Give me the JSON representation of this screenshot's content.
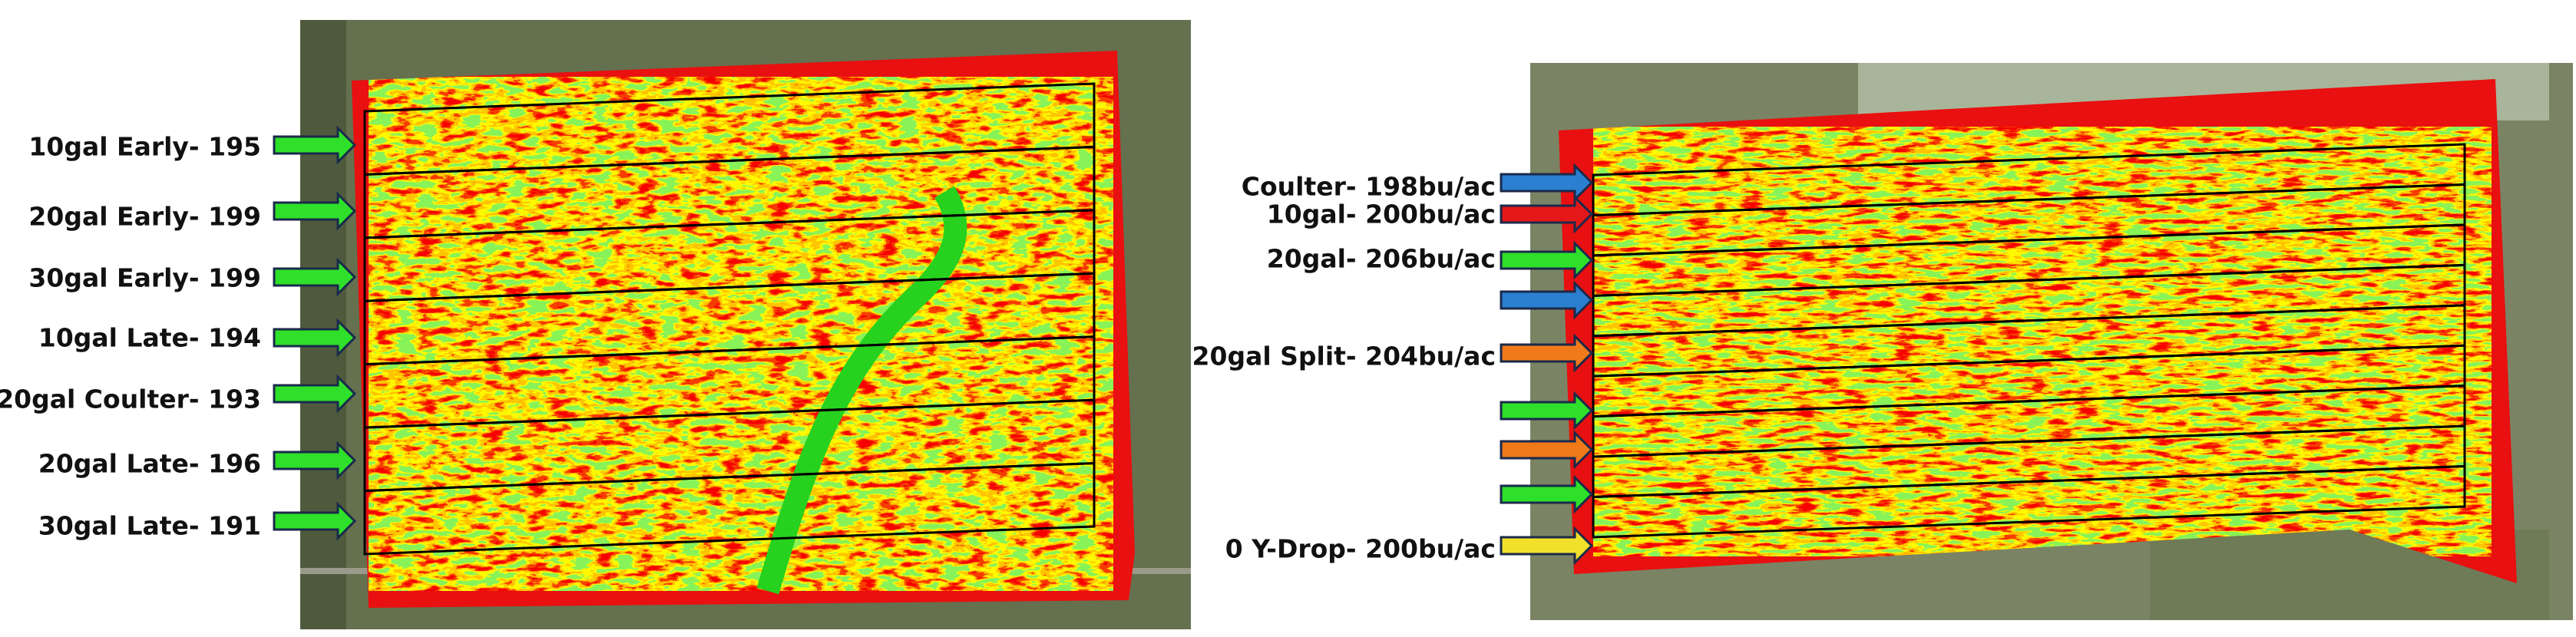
{
  "left_map": {
    "labels": [
      "10gal Early- 195",
      "20gal Early- 199",
      "30gal Early- 199",
      "10gal Late- 194",
      "20gal Coulter- 193",
      "20gal Late- 196",
      "30gal Late- 191"
    ]
  },
  "right_map": {
    "labels": [
      "Coulter- 198bu/ac",
      "10gal- 200bu/ac",
      "20gal- 206bu/ac",
      "20gal Split- 204bu/ac",
      "0 Y-Drop- 200bu/ac"
    ]
  }
}
